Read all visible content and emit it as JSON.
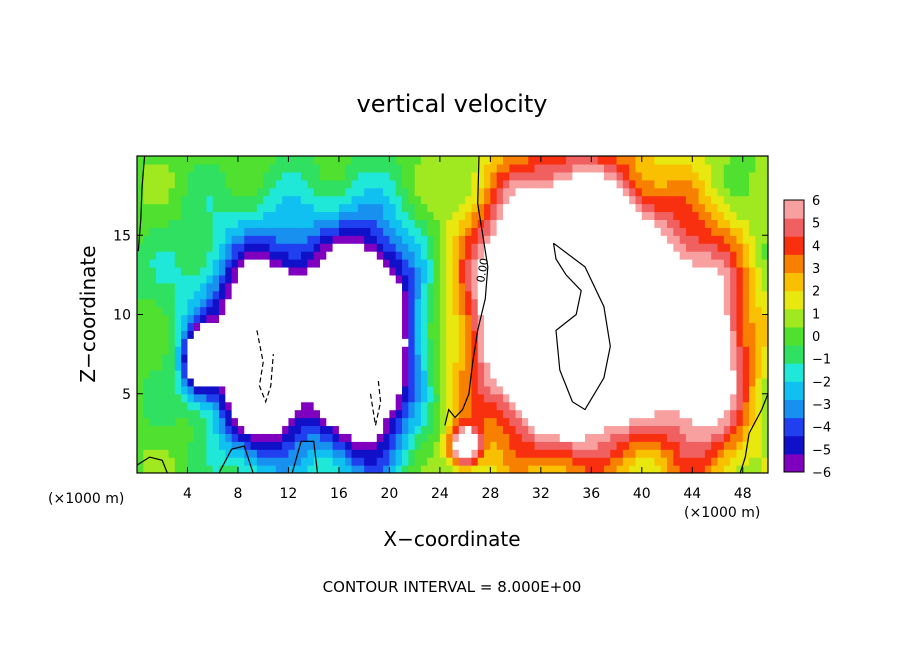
{
  "chart_data": {
    "type": "heatmap",
    "title": "vertical velocity",
    "xlabel": "X−coordinate",
    "ylabel": "Z−coordinate",
    "x_unit_left": "(×1000 m)",
    "x_unit_right": "(×1000 m)",
    "footer": "CONTOUR INTERVAL = 8.000E+00",
    "xlim": [
      0,
      50
    ],
    "ylim": [
      0,
      20
    ],
    "xticks": [
      4,
      8,
      12,
      16,
      20,
      24,
      28,
      32,
      36,
      40,
      44,
      48
    ],
    "xtick_labels": [
      "4",
      "8",
      "12",
      "16",
      "20",
      "24",
      "28",
      "32",
      "36",
      "40",
      "44",
      "48"
    ],
    "yticks": [
      5,
      10,
      15
    ],
    "ytick_labels": [
      "5",
      "10",
      "15"
    ],
    "colorbar": {
      "min": -6,
      "max": 6,
      "tick_values": [
        6,
        5,
        4,
        3,
        2,
        1,
        0,
        -1,
        -2,
        -3,
        -4,
        -5,
        -6
      ],
      "tick_labels": [
        "6",
        "5",
        "4",
        "3",
        "2",
        "1",
        "0",
        "−1",
        "−2",
        "−3",
        "−4",
        "−5",
        "−6"
      ]
    },
    "contour_label": "0.00",
    "features": [
      {
        "kind": "updraft",
        "x": 34.5,
        "z": 10.5,
        "rx": 7.0,
        "rz": 7.5,
        "value": 20
      },
      {
        "kind": "updraft",
        "x": 45.0,
        "z": 7.5,
        "rx": 3.5,
        "rz": 7.0,
        "value": 8
      },
      {
        "kind": "updraft",
        "x": 26.0,
        "z": 1.7,
        "rx": 1.2,
        "rz": 1.3,
        "value": 8
      },
      {
        "kind": "downdraft",
        "x": 10.0,
        "z": 7.0,
        "rx": 3.5,
        "rz": 5.5,
        "value": -12
      },
      {
        "kind": "downdraft",
        "x": 18.0,
        "z": 7.5,
        "rx": 3.5,
        "rz": 6.5,
        "value": -12
      },
      {
        "kind": "downdraft",
        "x": 5.0,
        "z": 7.0,
        "rx": 1.3,
        "rz": 2.0,
        "value": -8
      },
      {
        "kind": "downdraft",
        "x": 14.0,
        "z": 11.0,
        "rx": 10.0,
        "rz": 6.0,
        "value": -4
      }
    ]
  },
  "colors": {
    "scale": [
      "#8000c0",
      "#1010c8",
      "#2040f0",
      "#1890f0",
      "#10c0f0",
      "#20e8d8",
      "#30e060",
      "#50e030",
      "#a0e820",
      "#e8e810",
      "#f8c000",
      "#f88000",
      "#f83010",
      "#f06060",
      "#f8a0a0"
    ]
  }
}
